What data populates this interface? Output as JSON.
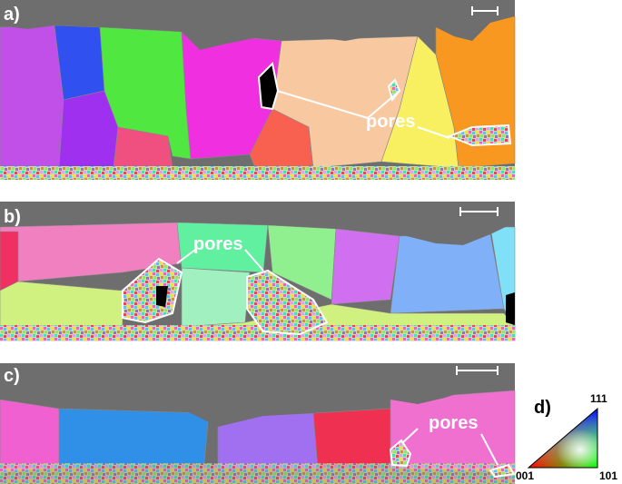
{
  "panels": [
    {
      "label": "a)",
      "annotation": "pores"
    },
    {
      "label": "b)",
      "annotation": "pores"
    },
    {
      "label": "c)",
      "annotation": "pores"
    }
  ],
  "legend": {
    "label": "d)",
    "corners": [
      "111",
      "001",
      "101"
    ]
  }
}
